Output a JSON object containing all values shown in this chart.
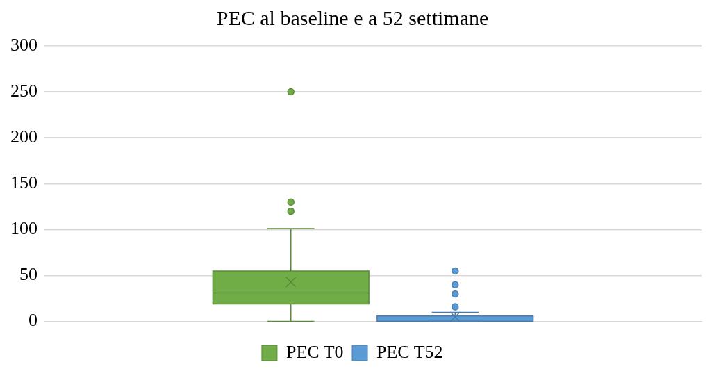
{
  "chart_data": {
    "type": "box",
    "title": "PEC al baseline e a 52 settimane",
    "categories": [
      null
    ],
    "series": [
      {
        "name": "PEC T0",
        "color": "#70ad47",
        "boxes": [
          {
            "low": 0,
            "q1": 19,
            "median": 31,
            "q3": 55,
            "high": 101,
            "mean": 43,
            "outliers": [
              120,
              130,
              250
            ]
          }
        ]
      },
      {
        "name": "PEC T52",
        "color": "#5b9bd5",
        "boxes": [
          {
            "low": 0,
            "q1": 0,
            "median": 0,
            "q3": 6,
            "high": 10,
            "mean": 5,
            "outliers": [
              16,
              30,
              40,
              55
            ]
          }
        ]
      }
    ],
    "ylim": [
      0,
      300
    ],
    "yticks": [
      0,
      50,
      100,
      150,
      200,
      250,
      300
    ],
    "grid": "y",
    "legend": "bottom"
  }
}
